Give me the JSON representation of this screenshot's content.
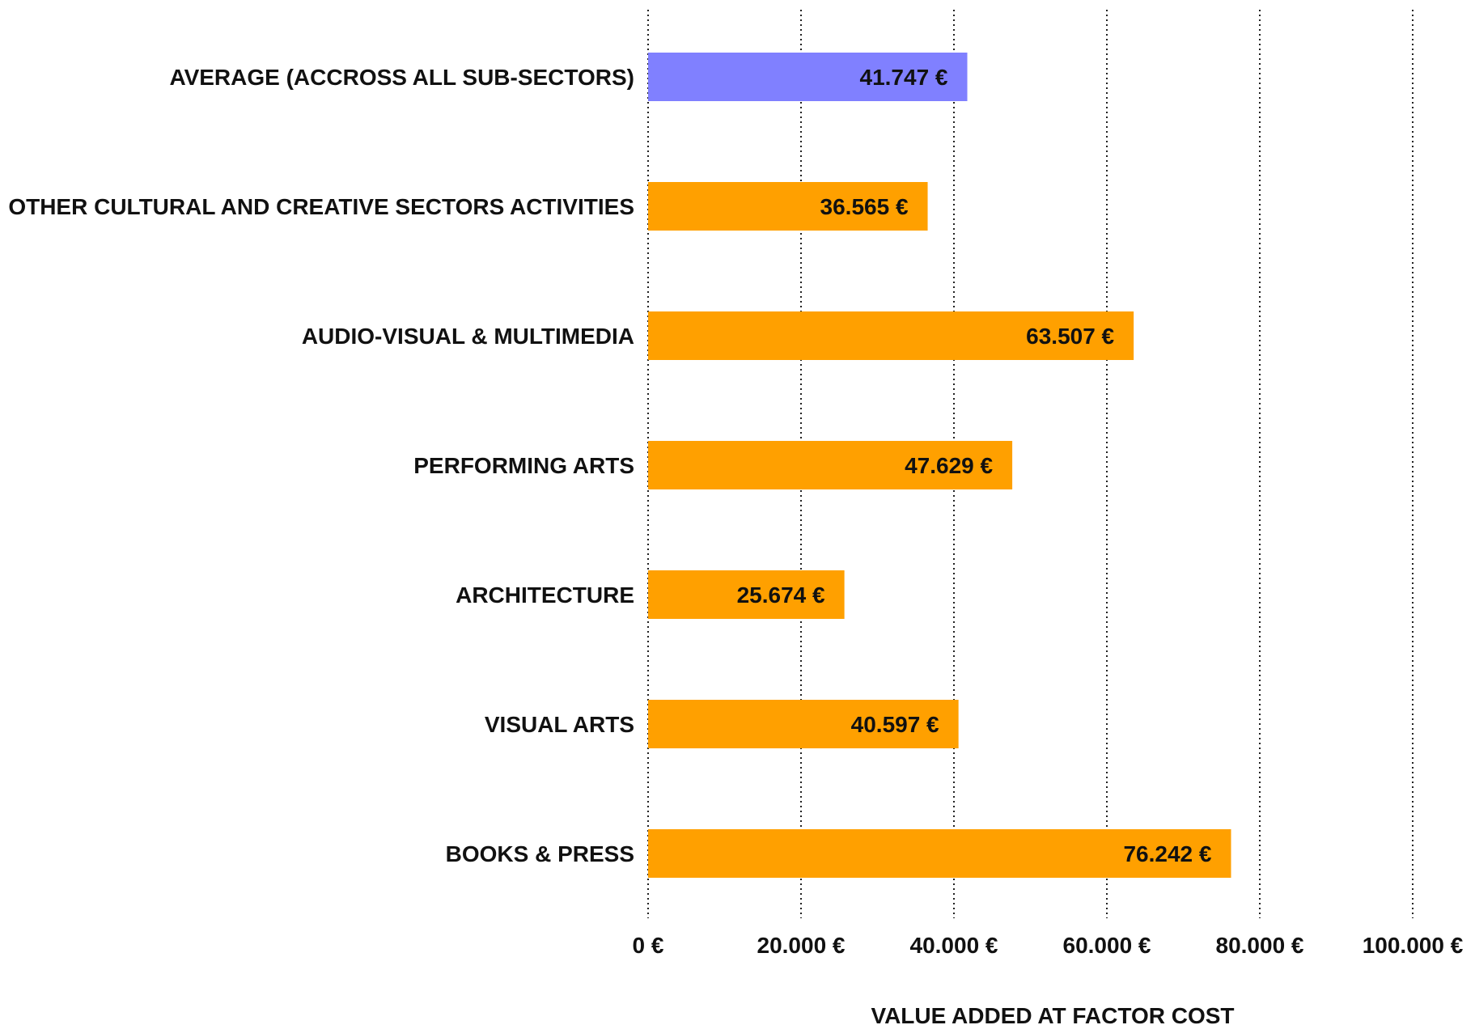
{
  "chart_data": {
    "type": "bar",
    "orientation": "horizontal",
    "categories": [
      "AVERAGE (ACCROSS ALL SUB-SECTORS)",
      "OTHER CULTURAL AND CREATIVE SECTORS ACTIVITIES",
      "AUDIO-VISUAL & MULTIMEDIA",
      "PERFORMING ARTS",
      "ARCHITECTURE",
      "VISUAL ARTS",
      "BOOKS & PRESS"
    ],
    "values": [
      41747,
      36565,
      63507,
      47629,
      25674,
      40597,
      76242
    ],
    "value_labels": [
      "41.747 €",
      "36.565 €",
      "63.507 €",
      "47.629 €",
      "25.674 €",
      "40.597 €",
      "76.242 €"
    ],
    "bar_colors": [
      "#8080ff",
      "#ffa000",
      "#ffa000",
      "#ffa000",
      "#ffa000",
      "#ffa000",
      "#ffa000"
    ],
    "xlabel": "VALUE ADDED AT FACTOR COST",
    "xlim": [
      0,
      100000
    ],
    "xticks": [
      0,
      20000,
      40000,
      60000,
      80000,
      100000
    ],
    "xtick_labels": [
      "0 €",
      "20.000 €",
      "40.000 €",
      "60.000 €",
      "80.000 €",
      "100.000 €"
    ],
    "grid": "vertical dotted",
    "legend": "none"
  }
}
